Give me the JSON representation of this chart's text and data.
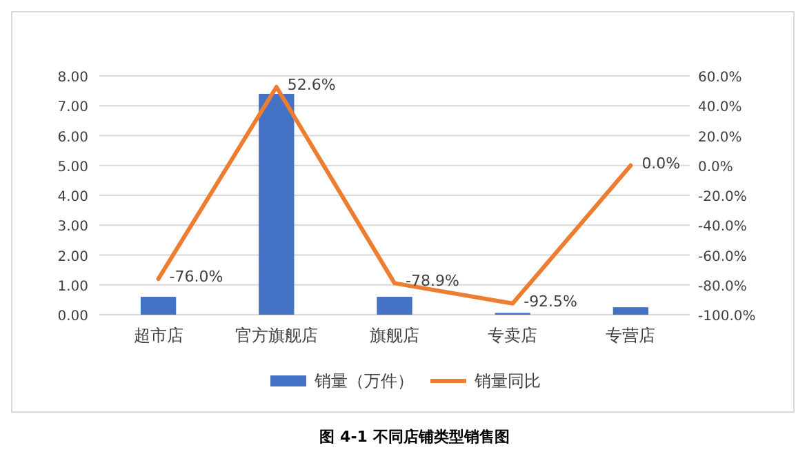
{
  "chart_data": {
    "type": "bar",
    "annotations": [
      "图 4-1  不同店铺类型销售图"
    ],
    "categories": [
      "超市店",
      "官方旗舰店",
      "旗舰店",
      "专卖店",
      "专营店"
    ],
    "series": [
      {
        "name": "销量（万件）",
        "color": "#4472c4",
        "values": [
          0.6,
          7.4,
          0.6,
          0.06,
          0.25
        ]
      },
      {
        "name": "销量同比",
        "type": "line",
        "axis": "y2",
        "color": "#ed7d31",
        "values": [
          -76.0,
          52.6,
          -78.9,
          -92.5,
          0.0
        ],
        "value_labels": [
          "-76.0%",
          "52.6%",
          "-78.9%",
          "-92.5%",
          "0.0%"
        ]
      }
    ],
    "ylim": [
      0,
      8
    ],
    "yticks": [
      {
        "value": 0,
        "label": "0.00"
      },
      {
        "value": 1,
        "label": "1.00"
      },
      {
        "value": 2,
        "label": "2.00"
      },
      {
        "value": 3,
        "label": "3.00"
      },
      {
        "value": 4,
        "label": "4.00"
      },
      {
        "value": 5,
        "label": "5.00"
      },
      {
        "value": 6,
        "label": "6.00"
      },
      {
        "value": 7,
        "label": "7.00"
      },
      {
        "value": 8,
        "label": "8.00"
      }
    ],
    "y2lim": [
      -100,
      60
    ],
    "y2ticks": [
      {
        "value": -100,
        "label": "-100.0%"
      },
      {
        "value": -80,
        "label": "-80.0%"
      },
      {
        "value": -60,
        "label": "-60.0%"
      },
      {
        "value": -40,
        "label": "-40.0%"
      },
      {
        "value": -20,
        "label": "-20.0%"
      },
      {
        "value": 0,
        "label": "0.0%"
      },
      {
        "value": 20,
        "label": "20.0%"
      },
      {
        "value": 40,
        "label": "40.0%"
      },
      {
        "value": 60,
        "label": "60.0%"
      }
    ],
    "grid": "y",
    "legend": "bottom"
  }
}
